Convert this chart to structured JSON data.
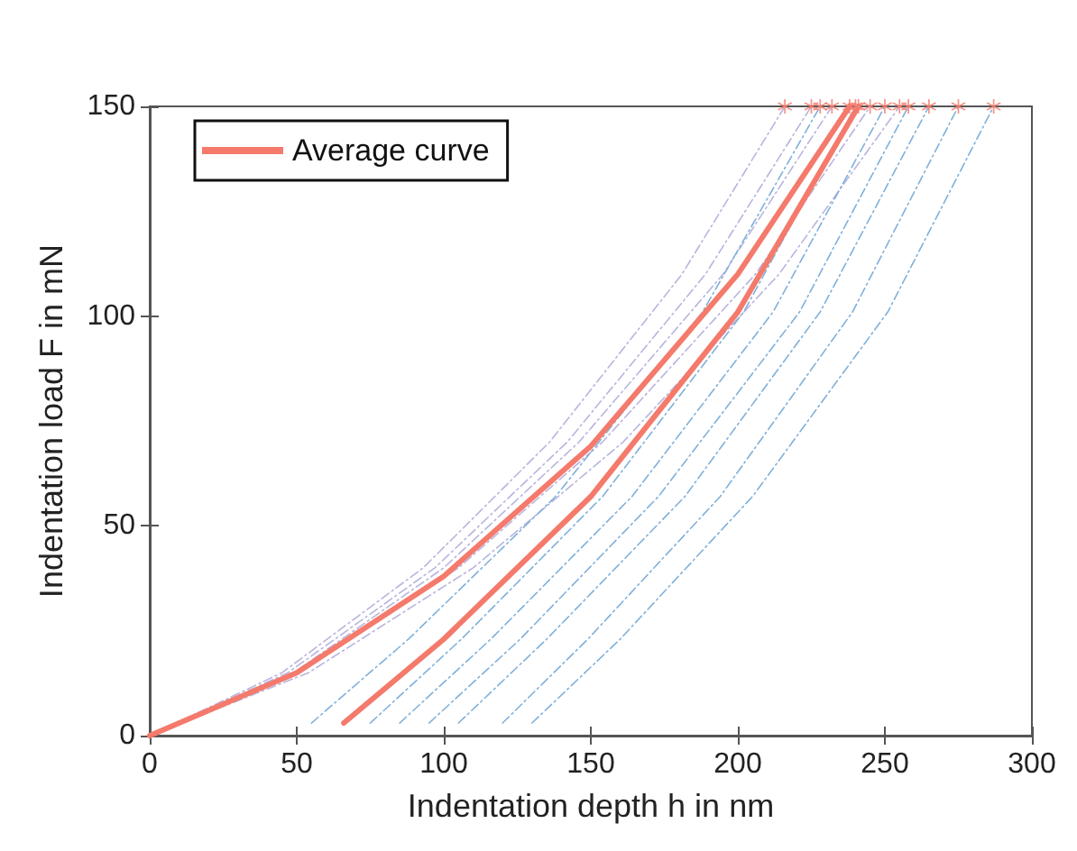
{
  "chart_data": {
    "type": "line",
    "xlabel": "Indentation depth h in nm",
    "ylabel": "Indentation load F in mN",
    "xlim": [
      0,
      300
    ],
    "xticks": [
      0,
      50,
      100,
      150,
      200,
      250,
      300
    ],
    "ylim": [
      0,
      150
    ],
    "yticks": [
      0,
      50,
      100,
      150
    ],
    "grid": false,
    "legend": "top left",
    "marker": "none",
    "series": [
      {
        "color": "#b8b4de",
        "line_style": "dashed",
        "x": [
          0,
          45,
          93,
          136,
          181,
          216
        ],
        "values": [
          0,
          15,
          40,
          70,
          110,
          150
        ]
      },
      {
        "color": "#b8b4de",
        "line_style": "dashed",
        "x": [
          0,
          47,
          97,
          142,
          189,
          225
        ],
        "values": [
          0,
          15,
          40,
          70,
          110,
          150
        ]
      },
      {
        "color": "#b8b4de",
        "line_style": "dashed",
        "x": [
          0,
          49,
          100,
          146,
          195,
          232
        ],
        "values": [
          0,
          15,
          40,
          70,
          110,
          150
        ]
      },
      {
        "color": "#b8b4de",
        "line_style": "dashed",
        "x": [
          0,
          51,
          105,
          154,
          206,
          245
        ],
        "values": [
          0,
          15,
          40,
          70,
          110,
          150
        ]
      },
      {
        "color": "#b8b4de",
        "line_style": "dashed",
        "x": [
          0,
          54,
          110,
          161,
          214,
          255
        ],
        "values": [
          0,
          15,
          40,
          70,
          110,
          150
        ]
      },
      {
        "color": "#7fb0da",
        "line_style": "dashed",
        "x": [
          55,
          88,
          138,
          188,
          228
        ],
        "values": [
          3,
          23,
          57,
          101,
          150
        ]
      },
      {
        "color": "#7fb0da",
        "line_style": "dashed",
        "x": [
          75,
          106,
          154,
          202,
          240
        ],
        "values": [
          3,
          23,
          57,
          101,
          150
        ]
      },
      {
        "color": "#7fb0da",
        "line_style": "dashed",
        "x": [
          85,
          116,
          164,
          212,
          250
        ],
        "values": [
          3,
          23,
          57,
          101,
          150
        ]
      },
      {
        "color": "#7fb0da",
        "line_style": "dashed",
        "x": [
          95,
          126,
          173,
          221,
          258
        ],
        "values": [
          3,
          23,
          57,
          101,
          150
        ]
      },
      {
        "color": "#7fb0da",
        "line_style": "dashed",
        "x": [
          105,
          135,
          182,
          228,
          265
        ],
        "values": [
          3,
          23,
          57,
          101,
          150
        ]
      },
      {
        "color": "#7fb0da",
        "line_style": "dashed",
        "x": [
          120,
          149,
          194,
          239,
          275
        ],
        "values": [
          3,
          23,
          57,
          101,
          150
        ]
      },
      {
        "color": "#7fb0da",
        "line_style": "dashed",
        "x": [
          130,
          160,
          205,
          251,
          287
        ],
        "values": [
          3,
          23,
          57,
          101,
          150
        ]
      },
      {
        "name": "Average curve",
        "color": "#f47a6c",
        "line_style": "solid",
        "x": [
          0,
          50,
          100,
          150,
          200,
          238
        ],
        "values": [
          0,
          15,
          38,
          69,
          110,
          150
        ]
      },
      {
        "color": "#f47a6c",
        "line_style": "solid",
        "x": [
          66,
          100,
          150,
          200,
          241
        ],
        "values": [
          3,
          23,
          57,
          101,
          150
        ]
      },
      {
        "type": "scatter",
        "marker": "star",
        "color": "#f47a6c",
        "x": [
          216,
          225,
          228,
          232,
          238,
          240,
          241,
          245,
          250,
          255,
          258,
          265,
          275,
          287
        ],
        "values": [
          150,
          150,
          150,
          150,
          150,
          150,
          150,
          150,
          150,
          150,
          150,
          150,
          150,
          150
        ]
      }
    ]
  }
}
